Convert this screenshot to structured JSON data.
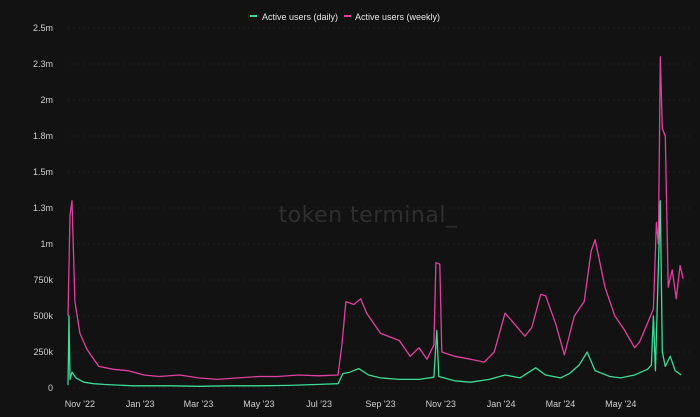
{
  "watermark": "token terminal_",
  "colors": {
    "daily": "#3ddc97",
    "weekly": "#e040a0",
    "background": "#121212",
    "grid": "#2a2a2a"
  },
  "chart_data": {
    "type": "line",
    "title": "",
    "xlabel": "",
    "ylabel": "",
    "grid": true,
    "legend_position": "top",
    "ylim": [
      0,
      2500000
    ],
    "y_ticks": [
      {
        "value": 0,
        "label": "0"
      },
      {
        "value": 250000,
        "label": "250k"
      },
      {
        "value": 500000,
        "label": "500k"
      },
      {
        "value": 750000,
        "label": "750k"
      },
      {
        "value": 1000000,
        "label": "1m"
      },
      {
        "value": 1250000,
        "label": "1.3m"
      },
      {
        "value": 1500000,
        "label": "1.5m"
      },
      {
        "value": 1750000,
        "label": "1.8m"
      },
      {
        "value": 2000000,
        "label": "2m"
      },
      {
        "value": 2250000,
        "label": "2.3m"
      },
      {
        "value": 2500000,
        "label": "2.5m"
      }
    ],
    "xlim": [
      "2022-10-20",
      "2024-07-10"
    ],
    "x_ticks": [
      {
        "date": "2022-11-01",
        "label": "Nov '22"
      },
      {
        "date": "2023-01-01",
        "label": "Jan '23"
      },
      {
        "date": "2023-03-01",
        "label": "Mar '23"
      },
      {
        "date": "2023-05-01",
        "label": "May '23"
      },
      {
        "date": "2023-07-01",
        "label": "Jul '23"
      },
      {
        "date": "2023-09-01",
        "label": "Sep '23"
      },
      {
        "date": "2023-11-01",
        "label": "Nov '23"
      },
      {
        "date": "2024-01-01",
        "label": "Jan '24"
      },
      {
        "date": "2024-03-01",
        "label": "Mar '24"
      },
      {
        "date": "2024-05-01",
        "label": "May '24"
      }
    ],
    "series": [
      {
        "name": "Active users (daily)",
        "color": "#3ddc97",
        "points": [
          [
            "2022-10-20",
            20000
          ],
          [
            "2022-10-21",
            500000
          ],
          [
            "2022-10-22",
            60000
          ],
          [
            "2022-10-24",
            110000
          ],
          [
            "2022-10-28",
            70000
          ],
          [
            "2022-11-05",
            40000
          ],
          [
            "2022-11-15",
            30000
          ],
          [
            "2022-11-25",
            25000
          ],
          [
            "2022-12-10",
            20000
          ],
          [
            "2022-12-25",
            15000
          ],
          [
            "2023-01-10",
            15000
          ],
          [
            "2023-02-01",
            15000
          ],
          [
            "2023-03-01",
            12000
          ],
          [
            "2023-04-01",
            15000
          ],
          [
            "2023-05-01",
            15000
          ],
          [
            "2023-06-01",
            18000
          ],
          [
            "2023-07-01",
            25000
          ],
          [
            "2023-07-20",
            30000
          ],
          [
            "2023-07-25",
            100000
          ],
          [
            "2023-08-01",
            110000
          ],
          [
            "2023-08-10",
            135000
          ],
          [
            "2023-08-20",
            90000
          ],
          [
            "2023-09-01",
            70000
          ],
          [
            "2023-09-20",
            60000
          ],
          [
            "2023-10-10",
            60000
          ],
          [
            "2023-10-25",
            75000
          ],
          [
            "2023-10-28",
            400000
          ],
          [
            "2023-10-30",
            80000
          ],
          [
            "2023-11-15",
            50000
          ],
          [
            "2023-12-01",
            40000
          ],
          [
            "2023-12-20",
            60000
          ],
          [
            "2024-01-05",
            90000
          ],
          [
            "2024-01-20",
            70000
          ],
          [
            "2024-02-05",
            140000
          ],
          [
            "2024-02-15",
            90000
          ],
          [
            "2024-03-01",
            70000
          ],
          [
            "2024-03-10",
            100000
          ],
          [
            "2024-03-20",
            160000
          ],
          [
            "2024-03-28",
            250000
          ],
          [
            "2024-04-05",
            120000
          ],
          [
            "2024-04-20",
            80000
          ],
          [
            "2024-05-01",
            70000
          ],
          [
            "2024-05-15",
            90000
          ],
          [
            "2024-05-28",
            130000
          ],
          [
            "2024-06-01",
            160000
          ],
          [
            "2024-06-03",
            500000
          ],
          [
            "2024-06-05",
            120000
          ],
          [
            "2024-06-10",
            1300000
          ],
          [
            "2024-06-12",
            250000
          ],
          [
            "2024-06-15",
            150000
          ],
          [
            "2024-06-20",
            220000
          ],
          [
            "2024-06-25",
            120000
          ],
          [
            "2024-07-01",
            90000
          ]
        ]
      },
      {
        "name": "Active users (weekly)",
        "color": "#e040a0",
        "points": [
          [
            "2022-10-20",
            500000
          ],
          [
            "2022-10-22",
            1200000
          ],
          [
            "2022-10-24",
            1300000
          ],
          [
            "2022-10-27",
            600000
          ],
          [
            "2022-11-01",
            380000
          ],
          [
            "2022-11-08",
            270000
          ],
          [
            "2022-11-20",
            150000
          ],
          [
            "2022-12-05",
            130000
          ],
          [
            "2022-12-20",
            120000
          ],
          [
            "2023-01-05",
            90000
          ],
          [
            "2023-01-20",
            80000
          ],
          [
            "2023-02-10",
            90000
          ],
          [
            "2023-03-01",
            70000
          ],
          [
            "2023-03-20",
            60000
          ],
          [
            "2023-04-10",
            70000
          ],
          [
            "2023-05-01",
            80000
          ],
          [
            "2023-05-20",
            80000
          ],
          [
            "2023-06-10",
            90000
          ],
          [
            "2023-07-01",
            85000
          ],
          [
            "2023-07-20",
            90000
          ],
          [
            "2023-07-24",
            300000
          ],
          [
            "2023-07-28",
            600000
          ],
          [
            "2023-08-05",
            580000
          ],
          [
            "2023-08-12",
            620000
          ],
          [
            "2023-08-18",
            520000
          ],
          [
            "2023-09-01",
            380000
          ],
          [
            "2023-09-20",
            330000
          ],
          [
            "2023-10-01",
            220000
          ],
          [
            "2023-10-10",
            280000
          ],
          [
            "2023-10-18",
            200000
          ],
          [
            "2023-10-25",
            300000
          ],
          [
            "2023-10-27",
            870000
          ],
          [
            "2023-10-31",
            860000
          ],
          [
            "2023-11-02",
            250000
          ],
          [
            "2023-11-15",
            220000
          ],
          [
            "2023-12-01",
            200000
          ],
          [
            "2023-12-15",
            180000
          ],
          [
            "2023-12-25",
            250000
          ],
          [
            "2024-01-05",
            520000
          ],
          [
            "2024-01-15",
            440000
          ],
          [
            "2024-01-25",
            360000
          ],
          [
            "2024-02-01",
            420000
          ],
          [
            "2024-02-10",
            650000
          ],
          [
            "2024-02-15",
            640000
          ],
          [
            "2024-02-25",
            450000
          ],
          [
            "2024-03-05",
            230000
          ],
          [
            "2024-03-15",
            500000
          ],
          [
            "2024-03-25",
            600000
          ],
          [
            "2024-04-01",
            950000
          ],
          [
            "2024-04-05",
            1030000
          ],
          [
            "2024-04-15",
            700000
          ],
          [
            "2024-04-25",
            500000
          ],
          [
            "2024-05-05",
            400000
          ],
          [
            "2024-05-15",
            280000
          ],
          [
            "2024-05-20",
            320000
          ],
          [
            "2024-05-28",
            450000
          ],
          [
            "2024-06-03",
            550000
          ],
          [
            "2024-06-06",
            1150000
          ],
          [
            "2024-06-08",
            1000000
          ],
          [
            "2024-06-10",
            2300000
          ],
          [
            "2024-06-12",
            1800000
          ],
          [
            "2024-06-15",
            1750000
          ],
          [
            "2024-06-18",
            700000
          ],
          [
            "2024-06-22",
            820000
          ],
          [
            "2024-06-26",
            620000
          ],
          [
            "2024-06-30",
            850000
          ],
          [
            "2024-07-03",
            760000
          ]
        ]
      }
    ]
  }
}
